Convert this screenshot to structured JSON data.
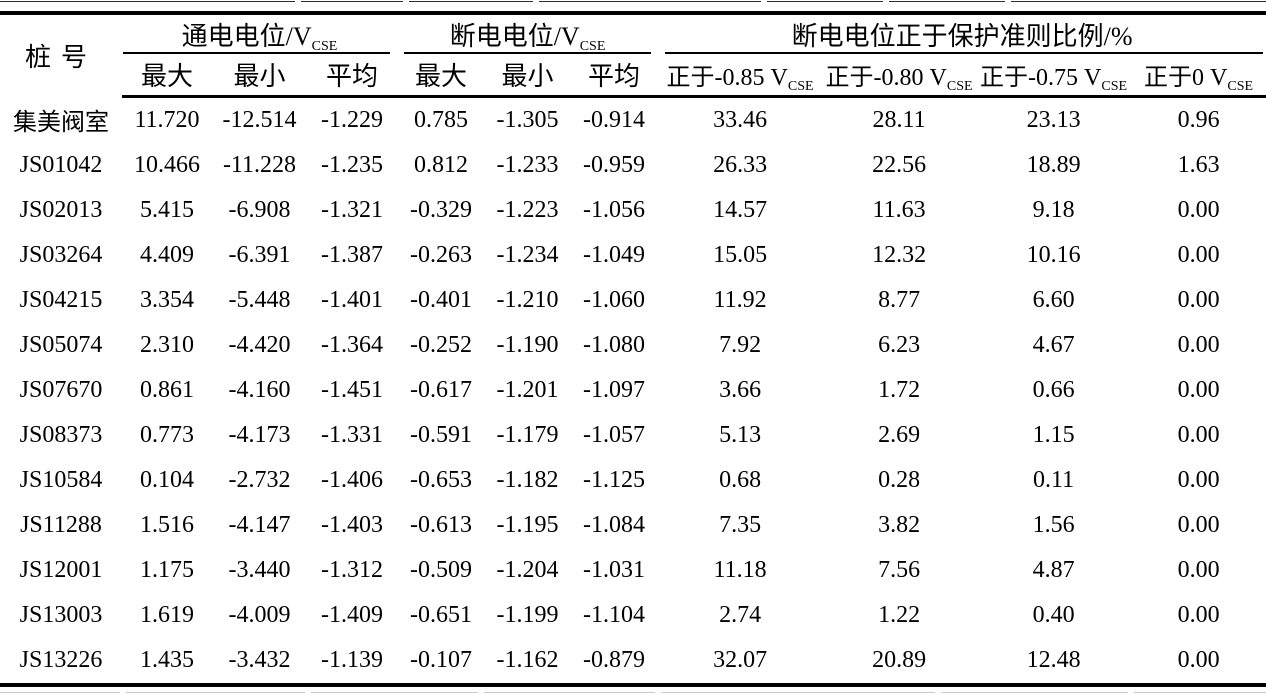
{
  "table": {
    "pile_header": "桩号",
    "groups": [
      {
        "title": "通电电位/V",
        "title_sub": "CSE",
        "subcols": [
          "最大",
          "最小",
          "平均"
        ]
      },
      {
        "title": "断电电位/V",
        "title_sub": "CSE",
        "subcols": [
          "最大",
          "最小",
          "平均"
        ]
      },
      {
        "title": "断电电位正于保护准则比例/%",
        "subcols": [
          {
            "text": "正于-0.85 V",
            "sub": "CSE"
          },
          {
            "text": "正于-0.80 V",
            "sub": "CSE"
          },
          {
            "text": "正于-0.75 V",
            "sub": "CSE"
          },
          {
            "text": "正于0 V",
            "sub": "CSE"
          }
        ]
      }
    ],
    "rows": [
      {
        "pile": "集美阀室",
        "values": [
          "11.720",
          "-12.514",
          "-1.229",
          "0.785",
          "-1.305",
          "-0.914",
          "33.46",
          "28.11",
          "23.13",
          "0.96"
        ]
      },
      {
        "pile": "JS01042",
        "values": [
          "10.466",
          "-11.228",
          "-1.235",
          "0.812",
          "-1.233",
          "-0.959",
          "26.33",
          "22.56",
          "18.89",
          "1.63"
        ]
      },
      {
        "pile": "JS02013",
        "values": [
          "5.415",
          "-6.908",
          "-1.321",
          "-0.329",
          "-1.223",
          "-1.056",
          "14.57",
          "11.63",
          "9.18",
          "0.00"
        ]
      },
      {
        "pile": "JS03264",
        "values": [
          "4.409",
          "-6.391",
          "-1.387",
          "-0.263",
          "-1.234",
          "-1.049",
          "15.05",
          "12.32",
          "10.16",
          "0.00"
        ]
      },
      {
        "pile": "JS04215",
        "values": [
          "3.354",
          "-5.448",
          "-1.401",
          "-0.401",
          "-1.210",
          "-1.060",
          "11.92",
          "8.77",
          "6.60",
          "0.00"
        ]
      },
      {
        "pile": "JS05074",
        "values": [
          "2.310",
          "-4.420",
          "-1.364",
          "-0.252",
          "-1.190",
          "-1.080",
          "7.92",
          "6.23",
          "4.67",
          "0.00"
        ]
      },
      {
        "pile": "JS07670",
        "values": [
          "0.861",
          "-4.160",
          "-1.451",
          "-0.617",
          "-1.201",
          "-1.097",
          "3.66",
          "1.72",
          "0.66",
          "0.00"
        ]
      },
      {
        "pile": "JS08373",
        "values": [
          "0.773",
          "-4.173",
          "-1.331",
          "-0.591",
          "-1.179",
          "-1.057",
          "5.13",
          "2.69",
          "1.15",
          "0.00"
        ]
      },
      {
        "pile": "JS10584",
        "values": [
          "0.104",
          "-2.732",
          "-1.406",
          "-0.653",
          "-1.182",
          "-1.125",
          "0.68",
          "0.28",
          "0.11",
          "0.00"
        ]
      },
      {
        "pile": "JS11288",
        "values": [
          "1.516",
          "-4.147",
          "-1.403",
          "-0.613",
          "-1.195",
          "-1.084",
          "7.35",
          "3.82",
          "1.56",
          "0.00"
        ]
      },
      {
        "pile": "JS12001",
        "values": [
          "1.175",
          "-3.440",
          "-1.312",
          "-0.509",
          "-1.204",
          "-1.031",
          "11.18",
          "7.56",
          "4.87",
          "0.00"
        ]
      },
      {
        "pile": "JS13003",
        "values": [
          "1.619",
          "-4.009",
          "-1.409",
          "-0.651",
          "-1.199",
          "-1.104",
          "2.74",
          "1.22",
          "0.40",
          "0.00"
        ]
      },
      {
        "pile": "JS13226",
        "values": [
          "1.435",
          "-3.432",
          "-1.139",
          "-0.107",
          "-1.162",
          "-0.879",
          "32.07",
          "20.89",
          "12.48",
          "0.00"
        ]
      }
    ],
    "colors": {
      "rule": "#000000",
      "background": "#ffffff",
      "text": "#000000"
    }
  }
}
